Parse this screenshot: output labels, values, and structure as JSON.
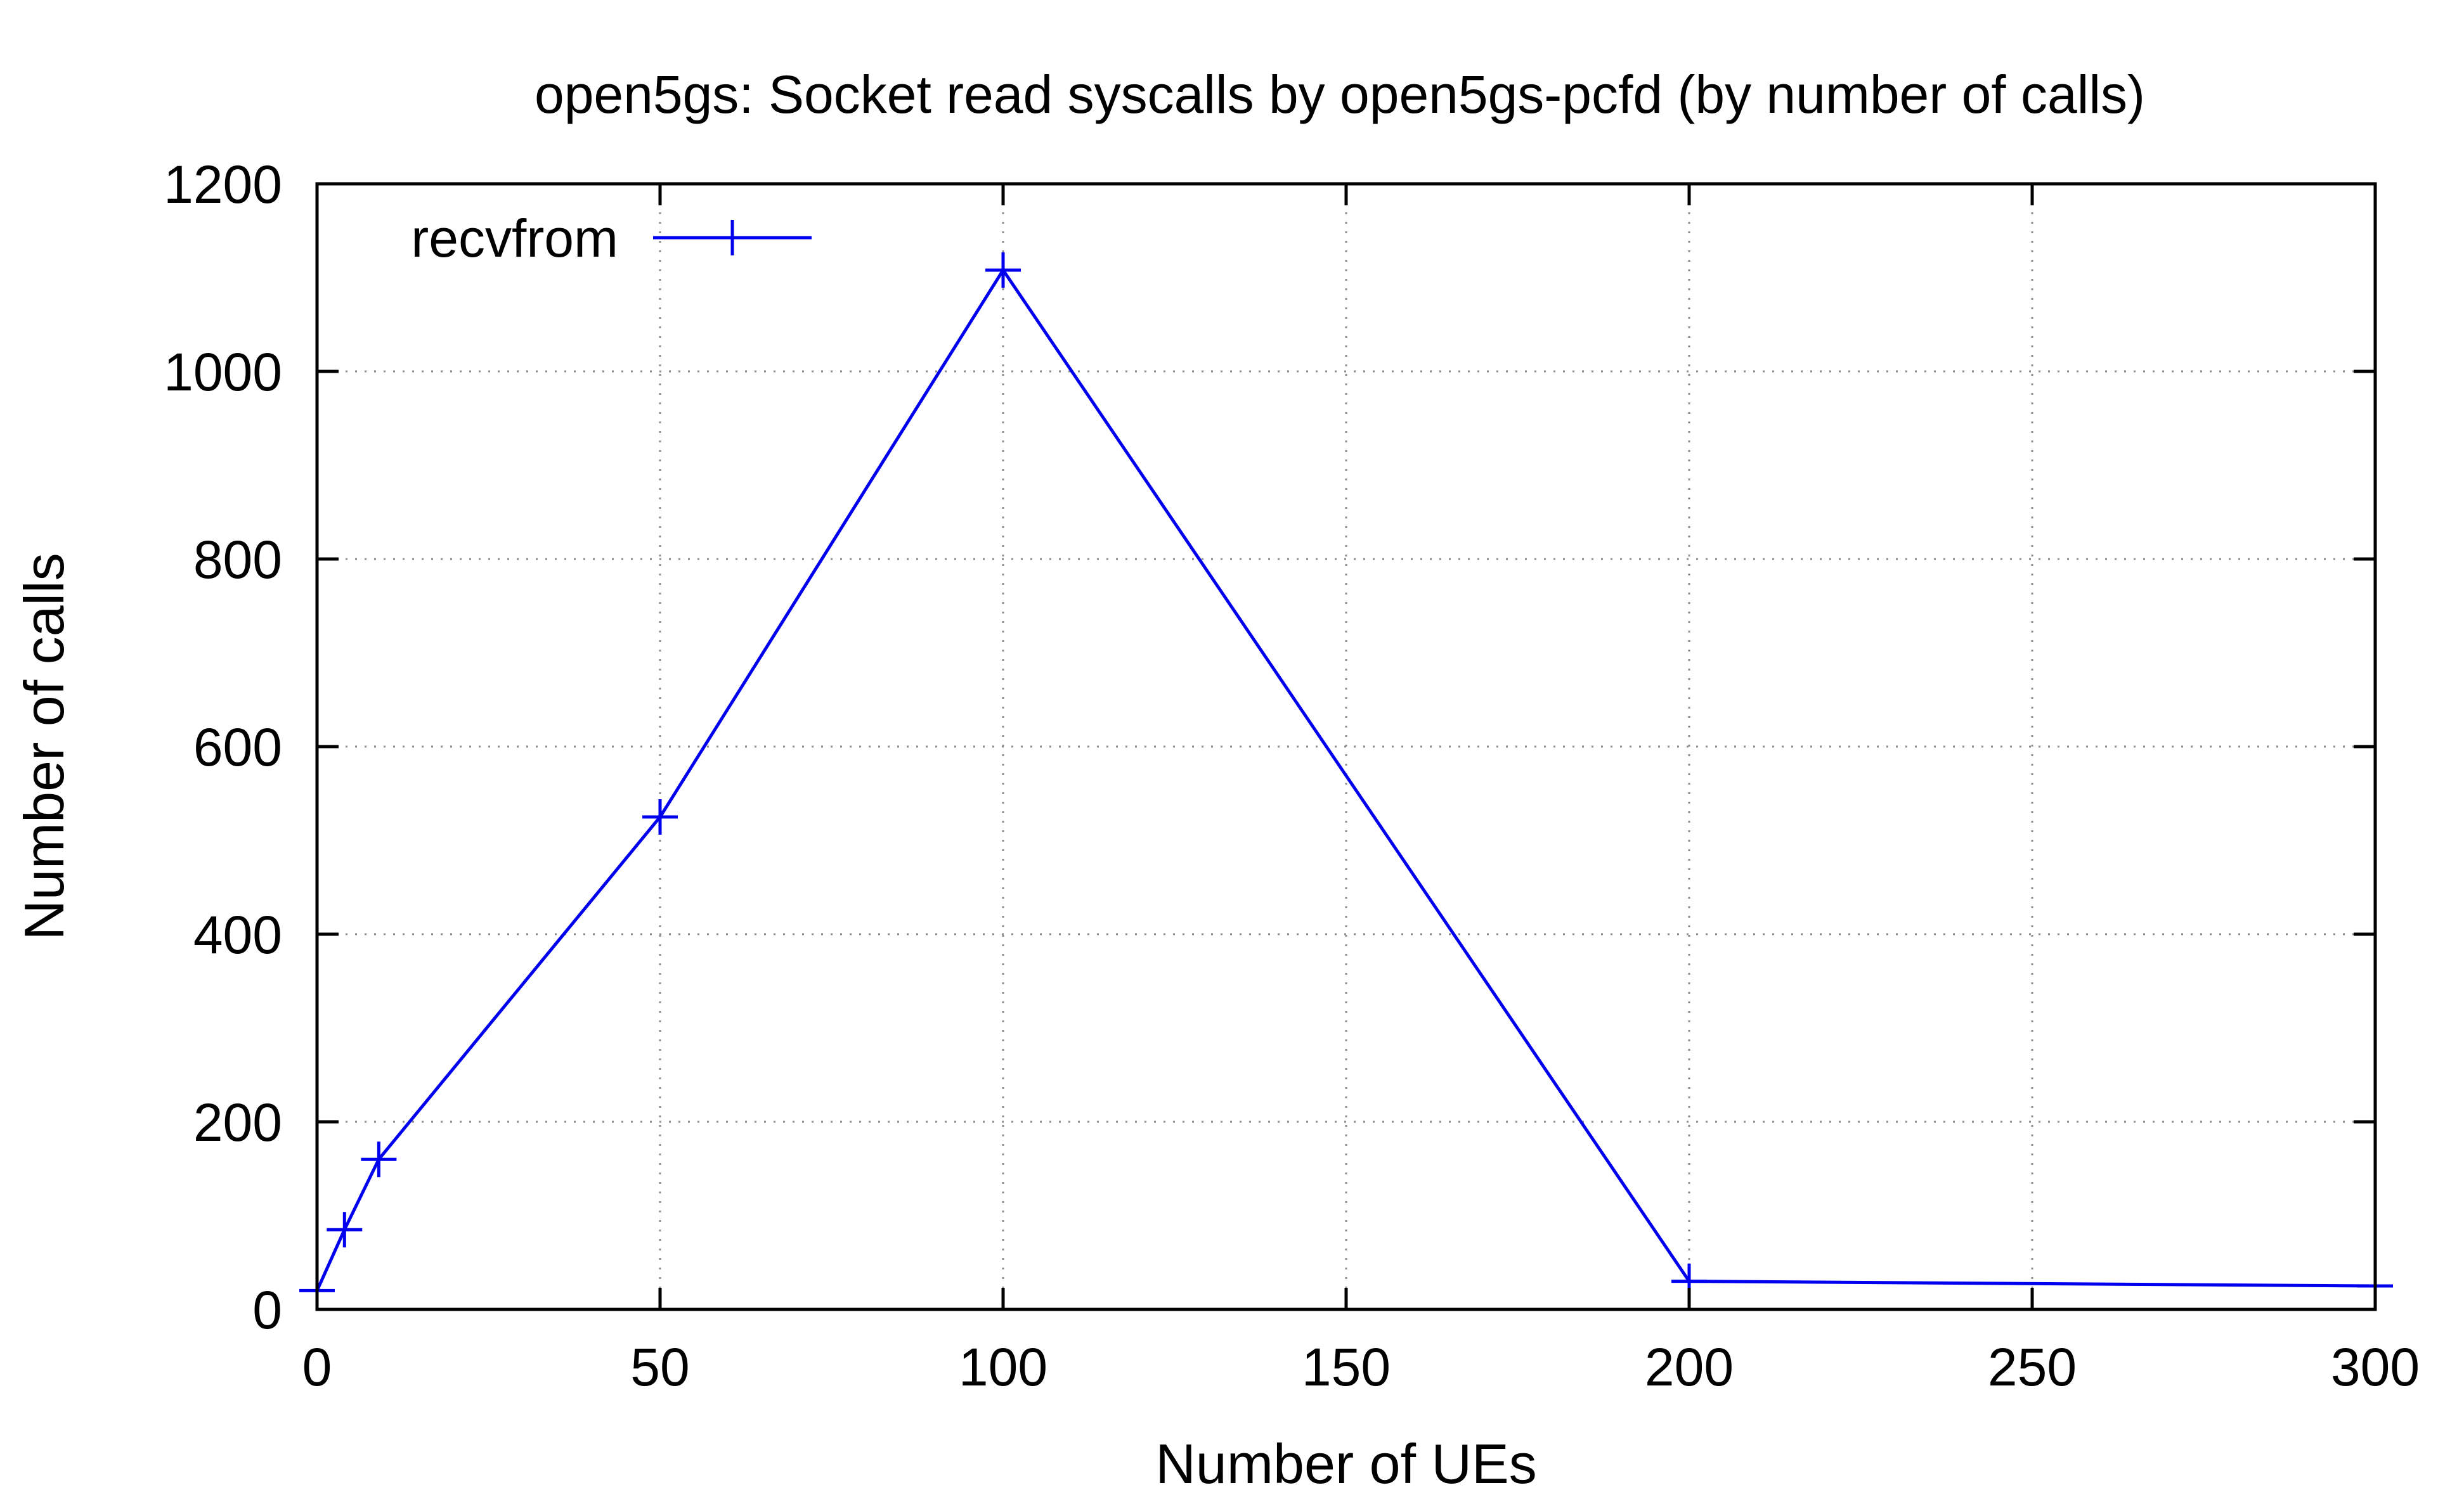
{
  "chart_data": {
    "type": "line",
    "title": "open5gs: Socket read syscalls by open5gs-pcfd (by number of calls)",
    "xlabel": "Number of UEs",
    "ylabel": "Number of calls",
    "xlim": [
      0,
      300
    ],
    "ylim": [
      0,
      1200
    ],
    "xticks": [
      0,
      50,
      100,
      150,
      200,
      250,
      300
    ],
    "yticks": [
      0,
      200,
      400,
      600,
      800,
      1000,
      1200
    ],
    "xtick_labels": [
      "0",
      "50",
      "100",
      "150",
      "200",
      "250",
      "300"
    ],
    "ytick_labels": [
      "0",
      "200",
      "400",
      "600",
      "800",
      "1000",
      "1200"
    ],
    "grid": true,
    "legend_position": "top-left",
    "series": [
      {
        "name": "recvfrom",
        "color": "#0000ee",
        "marker": "plus",
        "x": [
          0,
          4,
          9,
          50,
          100,
          200,
          300
        ],
        "y": [
          20,
          85,
          160,
          525,
          1108,
          30,
          25
        ]
      }
    ]
  }
}
